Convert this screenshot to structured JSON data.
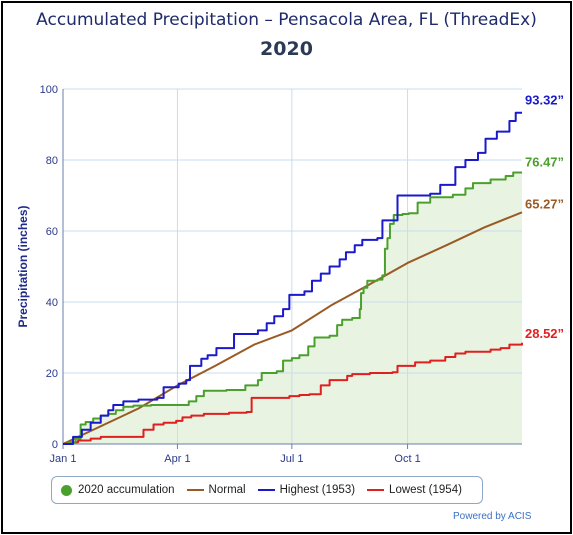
{
  "chart_data": {
    "type": "line",
    "title": "Accumulated Precipitation – Pensacola Area, FL (ThreadEx)",
    "subtitle": "2020",
    "ylabel": "Precipitation (inches)",
    "xlabel": "",
    "ylim": [
      0,
      100
    ],
    "xlim": [
      "Jan 1",
      "Dec 31"
    ],
    "y_ticks": [
      "0",
      "20",
      "40",
      "60",
      "80",
      "100"
    ],
    "x_ticks": [
      "Jan 1",
      "Apr 1",
      "Jul 1",
      "Oct 1"
    ],
    "x_tick_days": [
      0,
      91,
      182,
      274
    ],
    "grid": true,
    "legend_position": "bottom",
    "credit": "Powered by ACIS",
    "series": [
      {
        "name": "2020 accumulation",
        "color": "#4aa02c",
        "fill": "#e8f3e1",
        "step": true,
        "end_label": "76.47”",
        "points": [
          [
            0,
            0
          ],
          [
            4,
            0.5
          ],
          [
            10,
            1.5
          ],
          [
            14,
            5.5
          ],
          [
            18,
            6.2
          ],
          [
            24,
            7.2
          ],
          [
            30,
            8.0
          ],
          [
            36,
            8.5
          ],
          [
            42,
            9.5
          ],
          [
            48,
            10.5
          ],
          [
            56,
            10.8
          ],
          [
            70,
            11.0
          ],
          [
            90,
            11.0
          ],
          [
            100,
            12.0
          ],
          [
            106,
            13.5
          ],
          [
            112,
            15.0
          ],
          [
            130,
            15.2
          ],
          [
            145,
            16.5
          ],
          [
            155,
            18.0
          ],
          [
            158,
            20.0
          ],
          [
            170,
            20.5
          ],
          [
            175,
            23.5
          ],
          [
            182,
            24.2
          ],
          [
            188,
            25.0
          ],
          [
            195,
            27.5
          ],
          [
            200,
            30.0
          ],
          [
            212,
            30.5
          ],
          [
            218,
            33.5
          ],
          [
            222,
            35.0
          ],
          [
            230,
            35.5
          ],
          [
            236,
            38.0
          ],
          [
            237,
            42.5
          ],
          [
            239,
            44.0
          ],
          [
            242,
            46.0
          ],
          [
            250,
            46.3
          ],
          [
            254,
            47.5
          ],
          [
            256,
            55.0
          ],
          [
            258,
            58.0
          ],
          [
            260,
            62.0
          ],
          [
            263,
            64.5
          ],
          [
            270,
            64.8
          ],
          [
            275,
            65.0
          ],
          [
            282,
            68.0
          ],
          [
            292,
            69.5
          ],
          [
            310,
            70.2
          ],
          [
            320,
            72.0
          ],
          [
            326,
            73.5
          ],
          [
            340,
            74.5
          ],
          [
            352,
            75.5
          ],
          [
            358,
            76.47
          ],
          [
            365,
            76.47
          ]
        ]
      },
      {
        "name": "Normal",
        "color": "#9a5a24",
        "step": false,
        "end_label": "65.27”",
        "points": [
          [
            0,
            0
          ],
          [
            30,
            5.0
          ],
          [
            60,
            10.0
          ],
          [
            91,
            16.5
          ],
          [
            121,
            22.0
          ],
          [
            152,
            28.0
          ],
          [
            182,
            32.0
          ],
          [
            213,
            39.0
          ],
          [
            244,
            45.0
          ],
          [
            274,
            51.0
          ],
          [
            305,
            56.0
          ],
          [
            335,
            61.0
          ],
          [
            365,
            65.27
          ]
        ]
      },
      {
        "name": "Highest (1953)",
        "color": "#1a1acc",
        "step": true,
        "end_label": "93.32”",
        "points": [
          [
            0,
            0
          ],
          [
            8,
            2.0
          ],
          [
            15,
            4.0
          ],
          [
            22,
            6.0
          ],
          [
            30,
            8.0
          ],
          [
            36,
            9.5
          ],
          [
            40,
            11.0
          ],
          [
            48,
            12.0
          ],
          [
            60,
            12.5
          ],
          [
            75,
            13.0
          ],
          [
            80,
            16.0
          ],
          [
            92,
            17.0
          ],
          [
            98,
            18.0
          ],
          [
            101,
            22.0
          ],
          [
            110,
            24.0
          ],
          [
            115,
            25.0
          ],
          [
            122,
            27.0
          ],
          [
            136,
            31.0
          ],
          [
            155,
            32.0
          ],
          [
            162,
            34.0
          ],
          [
            168,
            36.0
          ],
          [
            175,
            38.0
          ],
          [
            180,
            42.0
          ],
          [
            192,
            43.0
          ],
          [
            198,
            46.0
          ],
          [
            205,
            48.0
          ],
          [
            212,
            50.0
          ],
          [
            220,
            52.0
          ],
          [
            225,
            54.0
          ],
          [
            232,
            56.0
          ],
          [
            238,
            57.5
          ],
          [
            250,
            58.0
          ],
          [
            254,
            63.0
          ],
          [
            266,
            70.0
          ],
          [
            292,
            70.5
          ],
          [
            300,
            73.0
          ],
          [
            312,
            78.0
          ],
          [
            320,
            80.0
          ],
          [
            330,
            82.0
          ],
          [
            336,
            86.0
          ],
          [
            345,
            88.0
          ],
          [
            355,
            91.0
          ],
          [
            360,
            93.32
          ],
          [
            365,
            93.32
          ]
        ]
      },
      {
        "name": "Lowest (1954)",
        "color": "#e01f1f",
        "step": true,
        "end_label": "28.52”",
        "points": [
          [
            0,
            0
          ],
          [
            5,
            0.5
          ],
          [
            12,
            1.0
          ],
          [
            22,
            1.5
          ],
          [
            30,
            2.0
          ],
          [
            60,
            2.0
          ],
          [
            64,
            4.0
          ],
          [
            72,
            5.5
          ],
          [
            80,
            6.0
          ],
          [
            90,
            6.5
          ],
          [
            95,
            7.5
          ],
          [
            102,
            8.0
          ],
          [
            112,
            8.5
          ],
          [
            132,
            8.8
          ],
          [
            146,
            9.0
          ],
          [
            150,
            13.0
          ],
          [
            180,
            13.5
          ],
          [
            188,
            13.8
          ],
          [
            196,
            14.0
          ],
          [
            205,
            16.5
          ],
          [
            212,
            18.0
          ],
          [
            226,
            19.2
          ],
          [
            230,
            19.7
          ],
          [
            244,
            20.0
          ],
          [
            262,
            20.2
          ],
          [
            266,
            22.0
          ],
          [
            280,
            23.0
          ],
          [
            292,
            23.5
          ],
          [
            304,
            24.5
          ],
          [
            312,
            25.5
          ],
          [
            320,
            26.0
          ],
          [
            340,
            26.6
          ],
          [
            348,
            27.0
          ],
          [
            355,
            28.0
          ],
          [
            365,
            28.52
          ]
        ]
      }
    ]
  }
}
